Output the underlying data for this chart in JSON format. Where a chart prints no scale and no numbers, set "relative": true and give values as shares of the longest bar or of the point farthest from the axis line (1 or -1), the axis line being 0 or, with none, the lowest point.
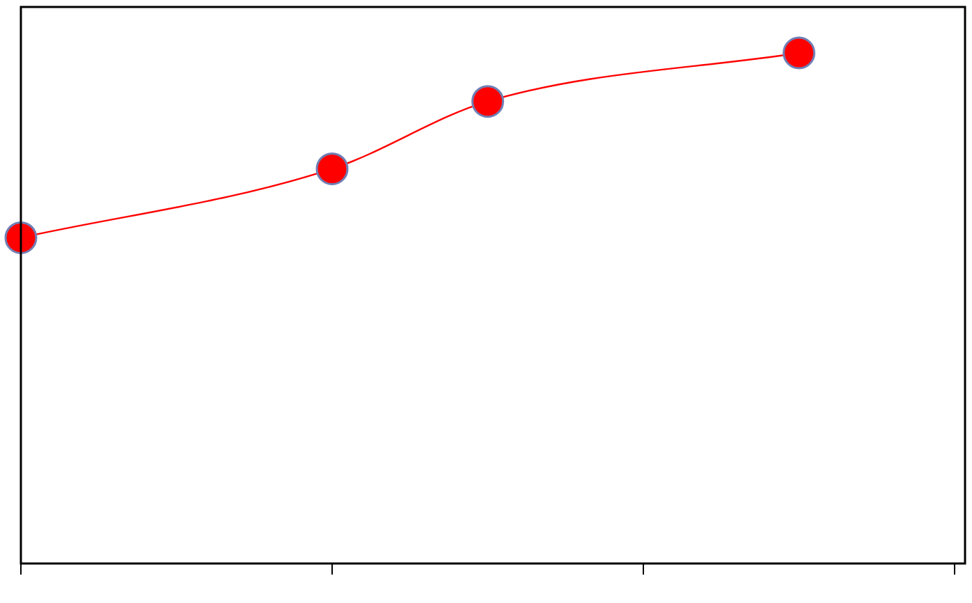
{
  "chart_data": {
    "type": "line",
    "relative": true,
    "categories": [
      null,
      null,
      null,
      null,
      null,
      null,
      null
    ],
    "series": [
      {
        "color": "#ff0000",
        "values": [
          0.638,
          null,
          0.773,
          0.905,
          null,
          1,
          null
        ]
      }
    ],
    "marker": "circle",
    "line_style": "solid",
    "grid": false,
    "legend": false
  }
}
